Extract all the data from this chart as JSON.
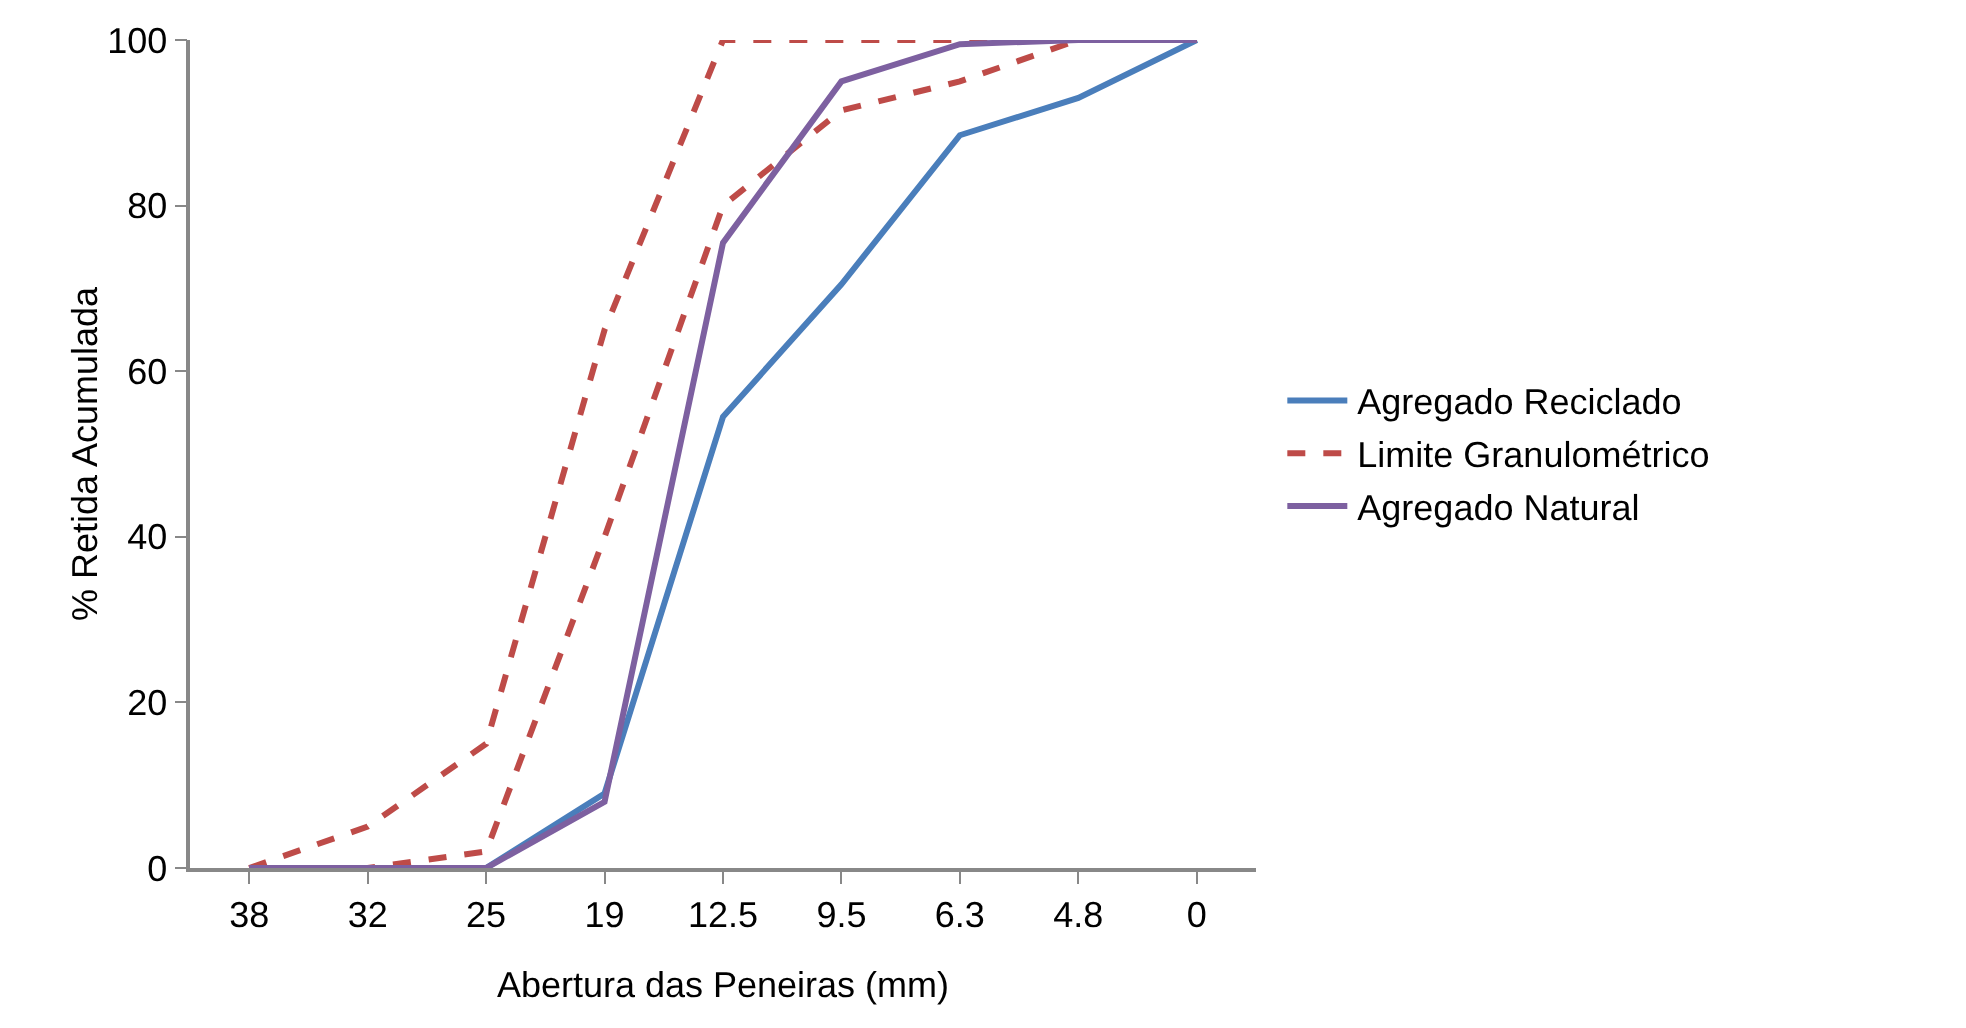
{
  "chart_data": {
    "type": "line",
    "xlabel": "Abertura das Peneiras (mm)",
    "ylabel": "% Retida Acumulada",
    "categories": [
      "38",
      "32",
      "25",
      "19",
      "12.5",
      "9.5",
      "6.3",
      "4.8",
      "0"
    ],
    "series": [
      {
        "name": "Agregado Reciclado",
        "color": "#4a7ebb",
        "line_style": "solid",
        "values": [
          0,
          0,
          0,
          9,
          54.5,
          70.5,
          88.5,
          93,
          100
        ]
      },
      {
        "name": "Limite Granulométrico",
        "color": "#be4b48",
        "line_style": "dashed",
        "values": [
          0,
          5,
          15,
          65,
          100,
          100,
          100,
          100,
          100
        ]
      },
      {
        "color": "#be4b48",
        "line_style": "dashed",
        "values": [
          0,
          0,
          2,
          40,
          80,
          91.5,
          95,
          100,
          100
        ]
      },
      {
        "name": "Agregado Natural",
        "color": "#7d60a0",
        "line_style": "solid",
        "values": [
          0,
          0,
          0,
          8,
          75.5,
          95,
          99.5,
          100,
          100
        ]
      }
    ],
    "ylim": [
      0,
      100
    ],
    "yticks": [
      0,
      20,
      40,
      60,
      80,
      100
    ],
    "grid": false,
    "legend": "right",
    "marker": "none"
  }
}
